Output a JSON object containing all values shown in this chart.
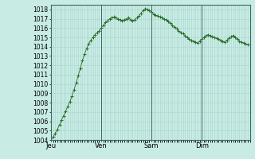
{
  "background_color": "#c8ece4",
  "grid_color": "#a8d4cc",
  "line_color": "#2d6e2d",
  "marker_color": "#2d6e2d",
  "ylim": [
    1004,
    1018.5
  ],
  "yticks": [
    1004,
    1005,
    1006,
    1007,
    1008,
    1009,
    1010,
    1011,
    1012,
    1013,
    1014,
    1015,
    1016,
    1017,
    1018
  ],
  "ytick_fontsize": 5.5,
  "day_labels": [
    "Jeu",
    "Ven",
    "Sam",
    "Dim"
  ],
  "day_positions": [
    0,
    24,
    48,
    72
  ],
  "vline_positions": [
    24,
    48,
    72
  ],
  "vline_color": "#3a6868",
  "pressure": [
    1004.0,
    1004.3,
    1004.7,
    1005.1,
    1005.6,
    1006.1,
    1006.6,
    1007.1,
    1007.6,
    1008.1,
    1008.7,
    1009.4,
    1010.1,
    1010.9,
    1011.7,
    1012.5,
    1013.2,
    1013.8,
    1014.3,
    1014.7,
    1015.0,
    1015.3,
    1015.5,
    1015.7,
    1016.0,
    1016.3,
    1016.6,
    1016.8,
    1017.0,
    1017.1,
    1017.2,
    1017.1,
    1017.0,
    1016.9,
    1016.8,
    1016.9,
    1017.0,
    1017.1,
    1016.9,
    1016.8,
    1016.9,
    1017.1,
    1017.3,
    1017.6,
    1017.9,
    1018.1,
    1018.0,
    1017.9,
    1017.7,
    1017.5,
    1017.4,
    1017.3,
    1017.2,
    1017.1,
    1017.0,
    1016.9,
    1016.7,
    1016.5,
    1016.3,
    1016.1,
    1015.9,
    1015.7,
    1015.5,
    1015.4,
    1015.2,
    1015.0,
    1014.8,
    1014.7,
    1014.6,
    1014.5,
    1014.4,
    1014.6,
    1014.8,
    1015.0,
    1015.2,
    1015.3,
    1015.2,
    1015.1,
    1015.0,
    1014.9,
    1014.8,
    1014.7,
    1014.6,
    1014.5,
    1014.7,
    1014.9,
    1015.1,
    1015.2,
    1015.0,
    1014.8,
    1014.6,
    1014.5,
    1014.4,
    1014.3,
    1014.2,
    1014.2
  ]
}
